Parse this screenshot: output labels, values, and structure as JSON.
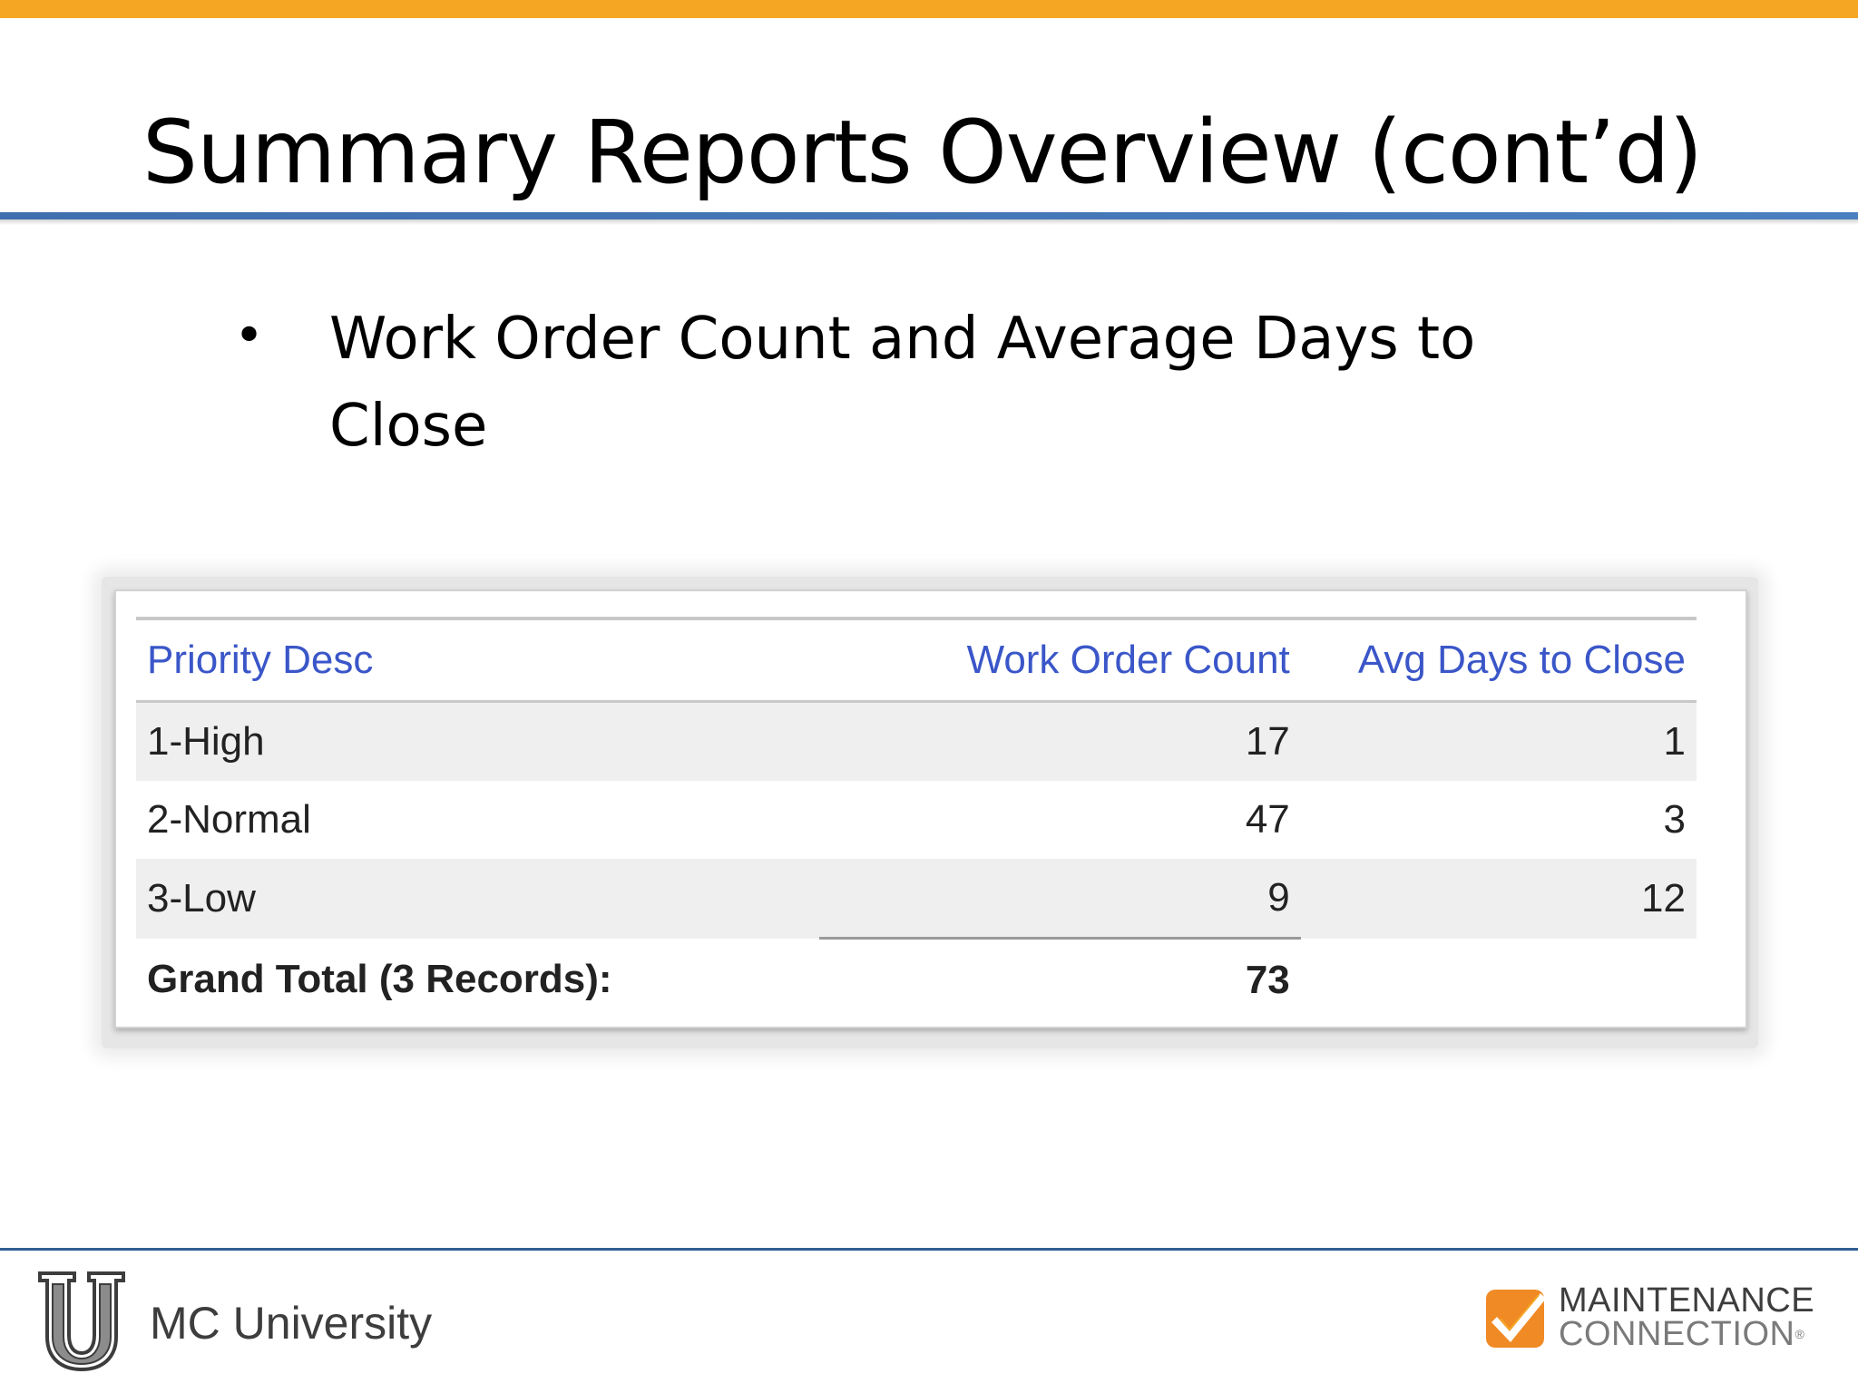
{
  "slide": {
    "title": "Summary Reports Overview (cont’d)",
    "bullets": [
      {
        "symbol": "•",
        "text": "Work Order Count and Average Days to Close"
      }
    ]
  },
  "report": {
    "columns": {
      "desc": "Priority Desc",
      "count": "Work Order Count",
      "avg": "Avg Days to Close"
    },
    "rows": [
      {
        "desc": "1-High",
        "count": "17",
        "avg": "1"
      },
      {
        "desc": "2-Normal",
        "count": "47",
        "avg": "3"
      },
      {
        "desc": "3-Low",
        "count": "9",
        "avg": "12"
      }
    ],
    "total": {
      "label": "Grand Total (3 Records):",
      "count": "73"
    }
  },
  "footer": {
    "university_label": "MC University",
    "brand_line1": "MAINTENANCE",
    "brand_line2": "CONNECTION",
    "brand_mark": "®"
  },
  "colors": {
    "top_bar": "#f5a623",
    "title_rule": "#3f6fae",
    "header_text": "#3a56c8",
    "brand_orange": "#f08a24"
  }
}
